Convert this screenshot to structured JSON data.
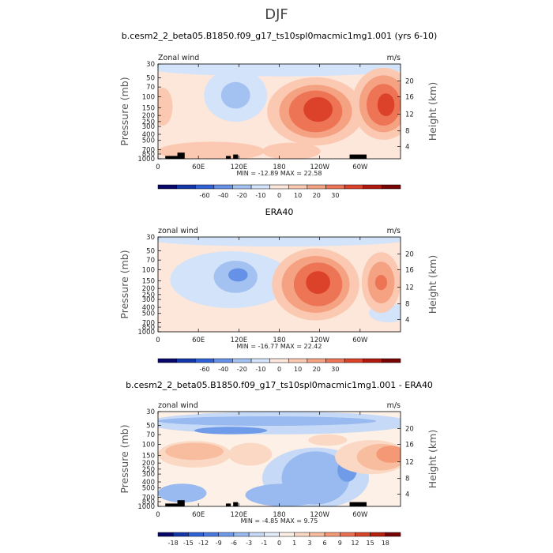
{
  "figure_title": "DJF",
  "colors": {
    "cb_top": [
      "#08086b",
      "#1336a8",
      "#2f62d6",
      "#6592e6",
      "#a4c2f1",
      "#d3e3fa",
      "#fde6da",
      "#fbc9b2",
      "#f5a283",
      "#ee7456",
      "#dc4229",
      "#b0190d",
      "#780404"
    ],
    "cb_diff": [
      "#08086b",
      "#1336a8",
      "#2f62d6",
      "#4a7ae0",
      "#6f9be8",
      "#99baf0",
      "#c6d9f6",
      "#e4eefb",
      "#fdf0e6",
      "#fbd8c4",
      "#f8bc9f",
      "#f49876",
      "#ec7052",
      "#d94627",
      "#b5200f",
      "#780404"
    ],
    "terrain": "#000000"
  },
  "chart_data": [
    {
      "type": "heatmap",
      "title": "b.cesm2_2_beta05.B1850.f09_g17_ts10spl0macmic1mg1.001 (yrs 6-10)",
      "left_label": "Zonal wind",
      "right_label": "m/s",
      "ylabel": "Pressure (mb)",
      "y2label": "Height (km)",
      "yticks": [
        "30",
        "50",
        "70",
        "100",
        "150",
        "200",
        "250",
        "300",
        "400",
        "500",
        "700",
        "850",
        "1000"
      ],
      "y2ticks": [
        "20",
        "16",
        "12",
        "8",
        "4"
      ],
      "xticks": [
        "0",
        "60E",
        "120E",
        "180",
        "120W",
        "60W"
      ],
      "stats": "MIN = -12.89   MAX =  22.58",
      "colorbar_labels": [
        "-60",
        "-40",
        "-20",
        "-10",
        "0",
        "10",
        "20",
        "30"
      ]
    },
    {
      "type": "heatmap",
      "title": "ERA40",
      "left_label": "zonal wind",
      "right_label": "m/s",
      "ylabel": "Pressure (mb)",
      "y2label": "Height (km)",
      "yticks": [
        "30",
        "50",
        "70",
        "100",
        "150",
        "200",
        "250",
        "300",
        "400",
        "500",
        "700",
        "850",
        "1000"
      ],
      "y2ticks": [
        "20",
        "16",
        "12",
        "8",
        "4"
      ],
      "xticks": [
        "0",
        "60E",
        "120E",
        "180",
        "120W",
        "60W"
      ],
      "stats": "MIN = -16.77   MAX =  22.42",
      "colorbar_labels": [
        "-60",
        "-40",
        "-20",
        "-10",
        "0",
        "10",
        "20",
        "30"
      ]
    },
    {
      "type": "heatmap",
      "title": "b.cesm2_2_beta05.B1850.f09_g17_ts10spl0macmic1mg1.001 - ERA40",
      "left_label": "zonal wind",
      "right_label": "m/s",
      "ylabel": "Pressure (mb)",
      "y2label": "Height (km)",
      "yticks": [
        "30",
        "50",
        "70",
        "100",
        "150",
        "200",
        "250",
        "300",
        "400",
        "500",
        "700",
        "850",
        "1000"
      ],
      "y2ticks": [
        "20",
        "16",
        "12",
        "8",
        "4"
      ],
      "xticks": [
        "0",
        "60E",
        "120E",
        "180",
        "120W",
        "60W"
      ],
      "stats": "MIN =  -4.85   MAX =   9.75",
      "colorbar_labels": [
        "-18",
        "-15",
        "-12",
        "-9",
        "-6",
        "-3",
        "-1",
        "0",
        "1",
        "3",
        "6",
        "9",
        "12",
        "15",
        "18"
      ]
    }
  ]
}
